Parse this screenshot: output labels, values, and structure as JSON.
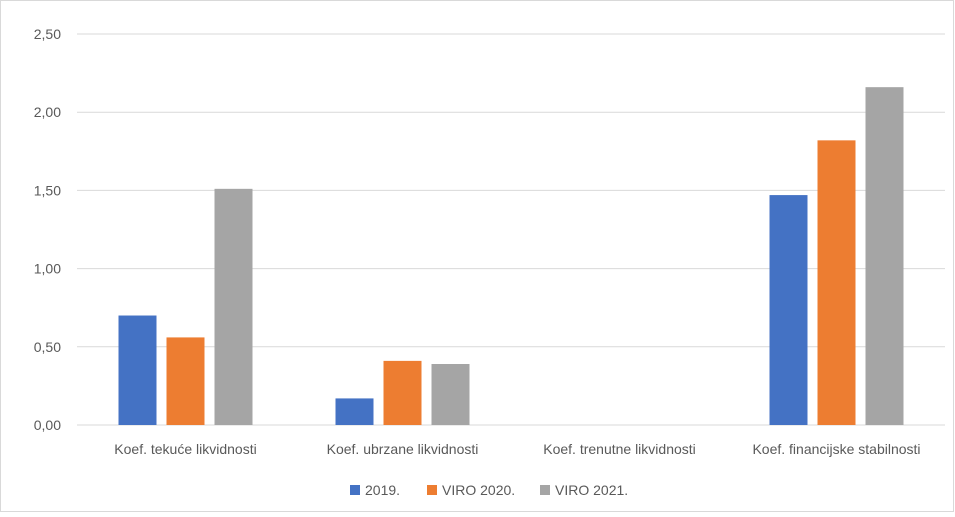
{
  "chart_data": {
    "type": "bar",
    "categories": [
      "Koef. tekuće likvidnosti",
      "Koef. ubrzane likvidnosti",
      "Koef. trenutne likvidnosti",
      "Koef. financijske stabilnosti"
    ],
    "series": [
      {
        "name": "2019.",
        "color": "#4472C4",
        "values": [
          0.7,
          0.17,
          0.0,
          1.47
        ]
      },
      {
        "name": "VIRO 2020.",
        "color": "#ED7D31",
        "values": [
          0.56,
          0.41,
          0.0,
          1.82
        ]
      },
      {
        "name": "VIRO 2021.",
        "color": "#A5A5A5",
        "values": [
          1.51,
          0.39,
          0.0,
          2.16
        ]
      }
    ],
    "yticks": [
      "0,00",
      "0,50",
      "1,00",
      "1,50",
      "2,00",
      "2,50"
    ],
    "ylim": [
      0,
      2.5
    ],
    "grid": true,
    "legend_position": "bottom"
  }
}
